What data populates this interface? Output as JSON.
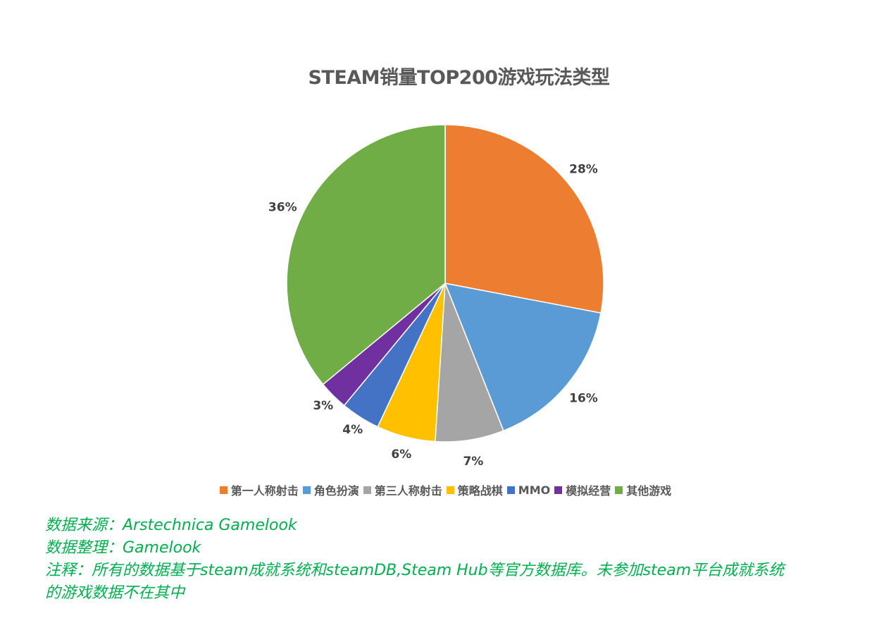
{
  "chart_data": {
    "type": "pie",
    "title": "STEAM销量TOP200游戏玩法类型",
    "categories": [
      "第一人称射击",
      "角色扮演",
      "第三人称射击",
      "策略战棋",
      "MMO",
      "模拟经营",
      "其他游戏"
    ],
    "values": [
      28,
      16,
      7,
      6,
      4,
      3,
      36
    ],
    "labels": [
      "28%",
      "16%",
      "7%",
      "6%",
      "4%",
      "3%",
      "36%"
    ],
    "colors": [
      "#ed7d31",
      "#5b9bd5",
      "#a5a5a5",
      "#ffc000",
      "#4472c4",
      "#7030a0",
      "#70ad47"
    ],
    "legend_position": "bottom",
    "start_angle": "12 o'clock, clockwise"
  },
  "notes": {
    "source": "数据来源：Arstechnica  Gamelook",
    "compiled": "数据整理：Gamelook",
    "remark_line1": "注释：所有的数据基于steam成就系统和steamDB,Steam Hub等官方数据库。未参加steam平台成就系统",
    "remark_line2": "的游戏数据不在其中"
  }
}
